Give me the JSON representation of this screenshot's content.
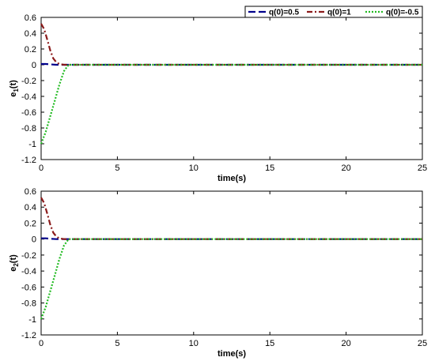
{
  "chart_data": [
    {
      "type": "line",
      "xlabel": "time(s)",
      "ylabel_main": "e",
      "ylabel_sub": "1",
      "ylabel_suffix": "(t)",
      "xlim": [
        0,
        25
      ],
      "ylim": [
        -1.2,
        0.6
      ],
      "xticks": [
        0,
        5,
        10,
        15,
        20,
        25
      ],
      "yticks": [
        -1.2,
        -1,
        -0.8,
        -0.6,
        -0.4,
        -0.2,
        0,
        0.2,
        0.4,
        0.6
      ],
      "grid": false,
      "legend_position": "top-right",
      "series": [
        {
          "name": "q(0)=0.5",
          "color": "#00008b",
          "dash": "dash",
          "x": [
            0,
            0.3,
            0.6,
            1,
            25
          ],
          "y": [
            0.01,
            0.01,
            0.005,
            0,
            0
          ]
        },
        {
          "name": "q(0)=1",
          "color": "#8b1a1a",
          "dash": "dashdot",
          "x": [
            0,
            0.2,
            0.4,
            0.6,
            0.8,
            1.0,
            1.2,
            1.5,
            25
          ],
          "y": [
            0.52,
            0.45,
            0.32,
            0.18,
            0.08,
            0.03,
            0.01,
            0,
            0
          ]
        },
        {
          "name": "q(0)=-0.5",
          "color": "#22bb22",
          "dash": "dot",
          "x": [
            0,
            0.3,
            0.6,
            0.9,
            1.2,
            1.5,
            1.8,
            25
          ],
          "y": [
            -1.0,
            -0.85,
            -0.65,
            -0.45,
            -0.25,
            -0.08,
            0,
            0
          ]
        }
      ]
    },
    {
      "type": "line",
      "xlabel": "time(s)",
      "ylabel_main": "e",
      "ylabel_sub": "2",
      "ylabel_suffix": "(t)",
      "xlim": [
        0,
        25
      ],
      "ylim": [
        -1.2,
        0.6
      ],
      "xticks": [
        0,
        5,
        10,
        15,
        20,
        25
      ],
      "yticks": [
        -1.2,
        -1,
        -0.8,
        -0.6,
        -0.4,
        -0.2,
        0,
        0.2,
        0.4,
        0.6
      ],
      "grid": false,
      "series": [
        {
          "name": "q(0)=0.5",
          "color": "#00008b",
          "dash": "dash",
          "x": [
            0,
            0.3,
            0.6,
            1,
            25
          ],
          "y": [
            0.01,
            0.01,
            0.005,
            0,
            0
          ]
        },
        {
          "name": "q(0)=1",
          "color": "#8b1a1a",
          "dash": "dashdot",
          "x": [
            0,
            0.2,
            0.4,
            0.6,
            0.8,
            1.0,
            1.2,
            1.5,
            25
          ],
          "y": [
            0.52,
            0.45,
            0.32,
            0.18,
            0.08,
            0.03,
            0.01,
            0,
            0
          ]
        },
        {
          "name": "q(0)=-0.5",
          "color": "#22bb22",
          "dash": "dot",
          "x": [
            0,
            0.3,
            0.6,
            0.9,
            1.2,
            1.5,
            1.8,
            25
          ],
          "y": [
            -1.0,
            -0.85,
            -0.65,
            -0.45,
            -0.25,
            -0.08,
            0,
            0
          ]
        }
      ]
    }
  ]
}
